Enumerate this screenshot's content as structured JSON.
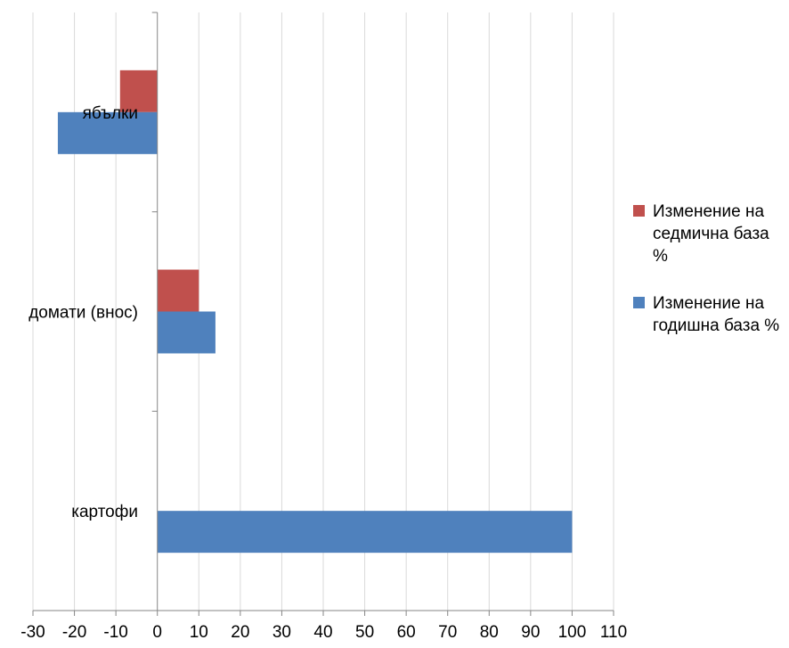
{
  "chart_data": {
    "type": "bar",
    "orientation": "horizontal",
    "categories": [
      "ябълки",
      "домати (внос)",
      "картофи"
    ],
    "series": [
      {
        "name": "Изменение на седмична база %",
        "color": "#c0504d",
        "values": [
          -9,
          10,
          null
        ]
      },
      {
        "name": "Изменение на годишна база %",
        "color": "#4f81bd",
        "values": [
          -24,
          14,
          100
        ]
      }
    ],
    "xlim": [
      -30,
      110
    ],
    "x_ticks": [
      "-30",
      "-20",
      "-10",
      "0",
      "10",
      "20",
      "30",
      "40",
      "50",
      "60",
      "70",
      "80",
      "90",
      "100",
      "110"
    ],
    "grid": "vertical",
    "legend_position": "right"
  }
}
